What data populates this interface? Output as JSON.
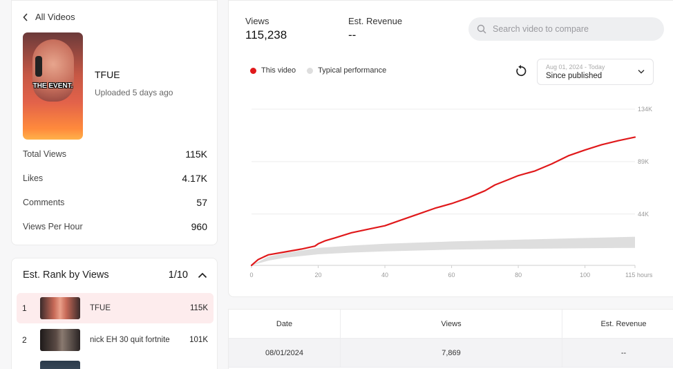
{
  "back_link": "All Videos",
  "video": {
    "title": "TFUE",
    "uploaded": "Uploaded 5 days ago",
    "thumbnail_caption": "THE EVENT."
  },
  "stats": [
    {
      "label": "Total Views",
      "value": "115K"
    },
    {
      "label": "Likes",
      "value": "4.17K"
    },
    {
      "label": "Comments",
      "value": "57"
    },
    {
      "label": "Views Per Hour",
      "value": "960"
    }
  ],
  "rank": {
    "title": "Est. Rank by Views",
    "position": "1/10",
    "items": [
      {
        "rank": "1",
        "name": "TFUE",
        "views": "115K"
      },
      {
        "rank": "2",
        "name": "nick EH 30 quit fortnite",
        "views": "101K"
      }
    ]
  },
  "metrics": {
    "views_label": "Views",
    "views_value": "115,238",
    "revenue_label": "Est. Revenue",
    "revenue_value": "--"
  },
  "search": {
    "placeholder": "Search video to compare"
  },
  "legend": {
    "this_video": "This video",
    "typical": "Typical performance"
  },
  "date_range": {
    "range": "Aug 01, 2024 - Today",
    "selected": "Since published"
  },
  "colors": {
    "this_video": "#e0191b",
    "typical": "#dedede",
    "active_row": "#fdeced"
  },
  "icons": {
    "back": "chevron-left-icon",
    "search": "search-icon",
    "reset": "reset-icon",
    "dropdown": "chevron-down-icon",
    "collapse": "chevron-up-icon"
  },
  "chart_data": {
    "type": "line",
    "x_unit": "hours",
    "xlim": [
      0,
      115
    ],
    "ylim": [
      0,
      134000
    ],
    "x_ticks": [
      "0",
      "20",
      "40",
      "60",
      "80",
      "100",
      "115 hours"
    ],
    "y_ticks": [
      "44K",
      "89K",
      "134K"
    ],
    "grid": true,
    "series": [
      {
        "name": "This video",
        "points": [
          [
            0,
            0
          ],
          [
            2,
            5000
          ],
          [
            5,
            9000
          ],
          [
            10,
            11500
          ],
          [
            15,
            14000
          ],
          [
            19,
            16500
          ],
          [
            20,
            18500
          ],
          [
            22,
            21000
          ],
          [
            25,
            23500
          ],
          [
            30,
            28000
          ],
          [
            35,
            31000
          ],
          [
            40,
            34000
          ],
          [
            45,
            39000
          ],
          [
            50,
            44000
          ],
          [
            55,
            49000
          ],
          [
            60,
            53000
          ],
          [
            65,
            58000
          ],
          [
            70,
            64000
          ],
          [
            73,
            69000
          ],
          [
            77,
            73500
          ],
          [
            80,
            77000
          ],
          [
            85,
            81000
          ],
          [
            90,
            87000
          ],
          [
            95,
            94000
          ],
          [
            100,
            99000
          ],
          [
            105,
            103500
          ],
          [
            110,
            107000
          ],
          [
            115,
            110000
          ]
        ]
      },
      {
        "name": "Typical performance",
        "band_upper": [
          [
            0,
            0
          ],
          [
            5,
            7500
          ],
          [
            10,
            10500
          ],
          [
            20,
            15000
          ],
          [
            30,
            17000
          ],
          [
            40,
            18500
          ],
          [
            60,
            20500
          ],
          [
            80,
            22000
          ],
          [
            100,
            23500
          ],
          [
            115,
            24500
          ]
        ],
        "band_lower": [
          [
            0,
            0
          ],
          [
            5,
            4000
          ],
          [
            10,
            6500
          ],
          [
            20,
            9500
          ],
          [
            30,
            11000
          ],
          [
            40,
            12000
          ],
          [
            60,
            13500
          ],
          [
            80,
            14200
          ],
          [
            100,
            14700
          ],
          [
            115,
            15000
          ]
        ]
      }
    ]
  },
  "table": {
    "headers": [
      "Date",
      "Views",
      "Est. Revenue"
    ],
    "rows": [
      [
        "08/01/2024",
        "7,869",
        "--"
      ]
    ]
  }
}
